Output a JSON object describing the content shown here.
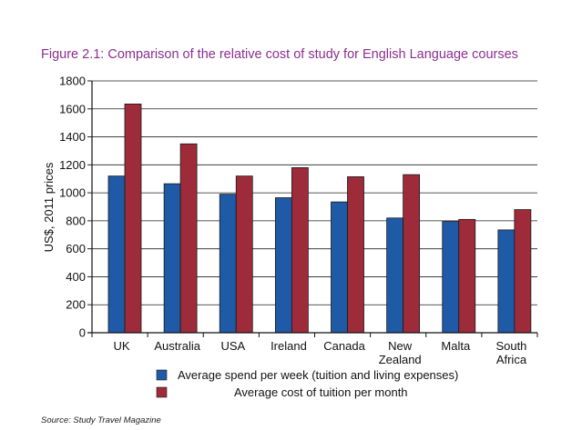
{
  "chart_data": {
    "type": "bar",
    "title": "Figure 2.1: Comparison of the relative cost of study for English Language courses",
    "ylabel": "US$, 2011 prices",
    "xlabel": "",
    "ylim": [
      0,
      1800
    ],
    "yticks": [
      0,
      200,
      400,
      600,
      800,
      1000,
      1200,
      1400,
      1600,
      1800
    ],
    "grid": true,
    "legend_position": "bottom",
    "categories": [
      [
        "UK"
      ],
      [
        "Australia"
      ],
      [
        "USA"
      ],
      [
        "Ireland"
      ],
      [
        "Canada"
      ],
      [
        "New",
        "Zealand"
      ],
      [
        "Malta"
      ],
      [
        "South",
        "Africa"
      ]
    ],
    "series": [
      {
        "name": "Average spend per week (tuition and living expenses)",
        "color": "#1f5aa6",
        "values": [
          1120,
          1065,
          990,
          965,
          935,
          820,
          795,
          735
        ]
      },
      {
        "name": "Average cost of tuition per month",
        "color": "#9e2b3a",
        "values": [
          1635,
          1350,
          1120,
          1180,
          1115,
          1130,
          810,
          880
        ]
      }
    ],
    "source": "Source: Study Travel Magazine"
  }
}
